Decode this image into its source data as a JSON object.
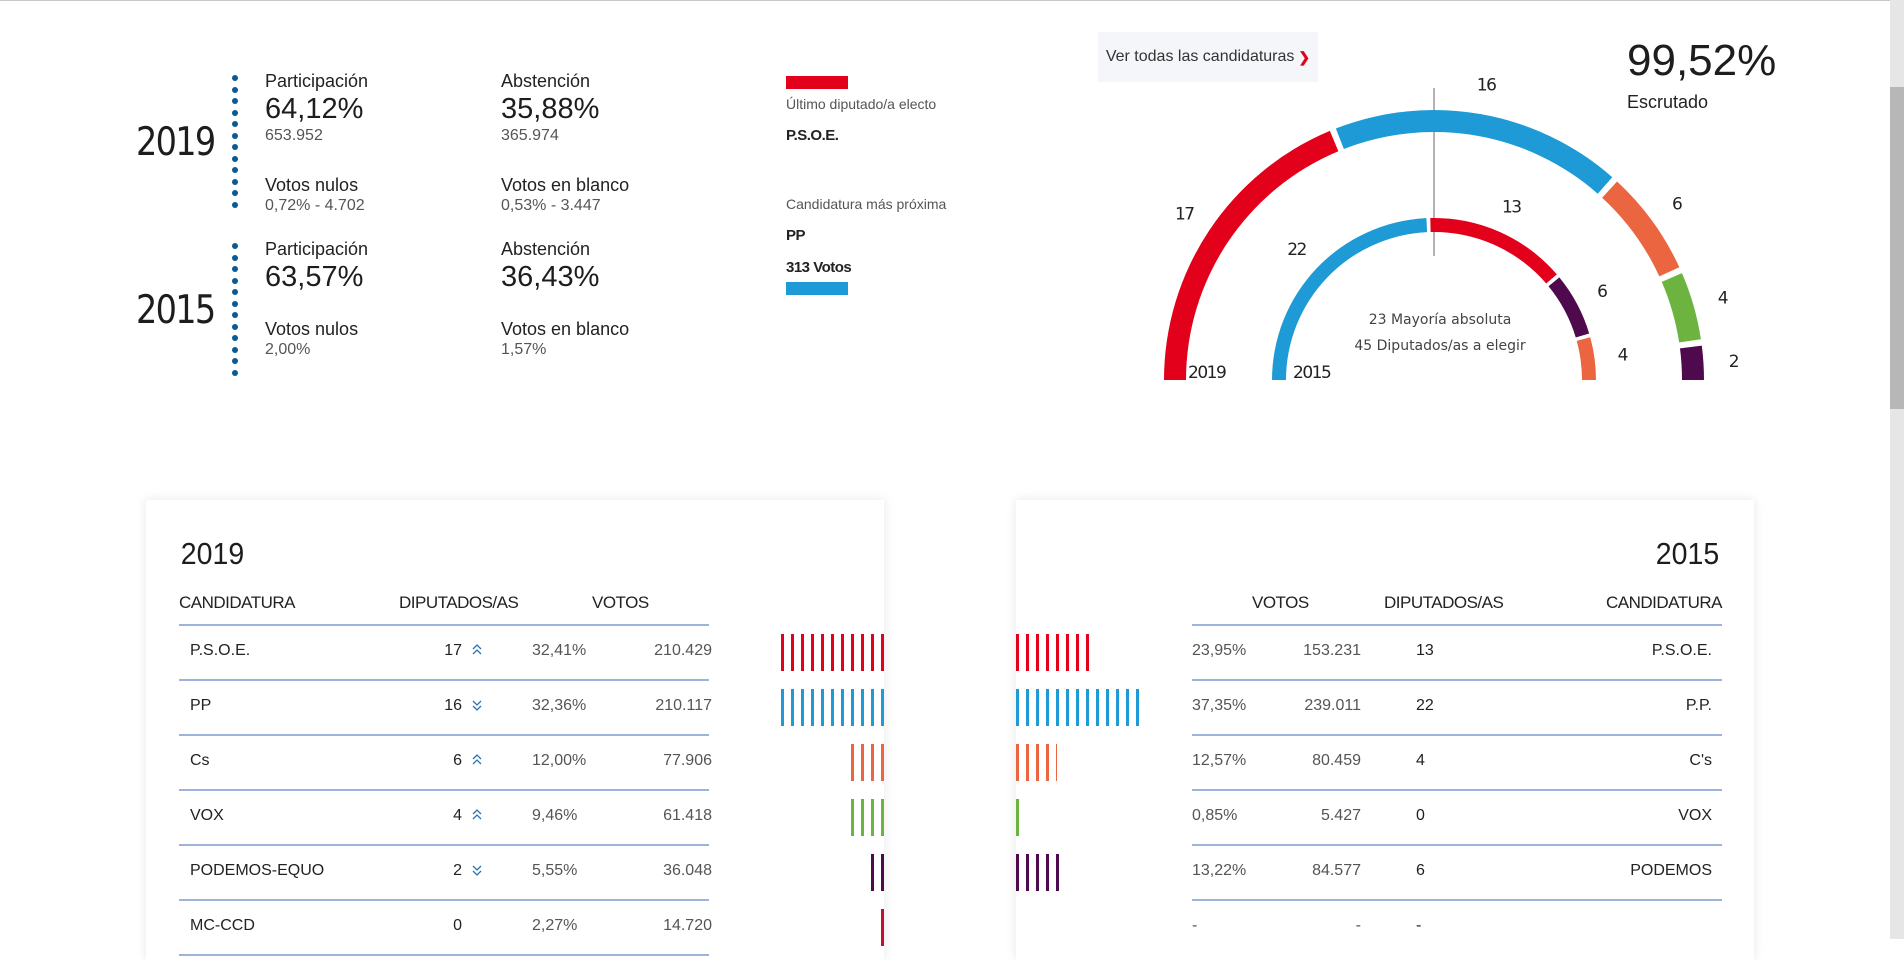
{
  "colors": {
    "psoe": "#e2001a",
    "pp": "#1e9ad6",
    "cs": "#ea6540",
    "vox": "#6cb43f",
    "podemos": "#4f0a4d",
    "mc_ccd": "#c8102e",
    "dots": "#0a5a95"
  },
  "stats": [
    {
      "year": "2019",
      "participacion_label": "Participación",
      "participacion_pct": "64,12%",
      "participacion_votes": "653.952",
      "abstencion_label": "Abstención",
      "abstencion_pct": "35,88%",
      "abstencion_votes": "365.974",
      "nulos_label": "Votos nulos",
      "nulos_value": "0,72% - 4.702",
      "blanco_label": "Votos en blanco",
      "blanco_value": "0,53% - 3.447"
    },
    {
      "year": "2015",
      "participacion_label": "Participación",
      "participacion_pct": "63,57%",
      "abstencion_label": "Abstención",
      "abstencion_pct": "36,43%",
      "nulos_label": "Votos nulos",
      "nulos_value": "2,00%",
      "blanco_label": "Votos en blanco",
      "blanco_value": "1,57%"
    }
  ],
  "last_seat": {
    "ultimo_label": "Último diputado/a electo",
    "ultimo_party": "P.S.O.E.",
    "proxima_label": "Candidatura más próxima",
    "proxima_party": "PP",
    "proxima_votes": "313 Votos"
  },
  "dropdown": {
    "label": "Ver todas las candidaturas"
  },
  "escrutado": {
    "pct": "99,52%",
    "label": "Escrutado"
  },
  "chart_data": {
    "type": "pie",
    "subtype": "parliament-semicircle",
    "total_seats": 45,
    "majority": 23,
    "center_line1": "23 Mayoría absoluta",
    "center_line2": "45 Diputados/as a elegir",
    "series": [
      {
        "name": "2019",
        "label": "2019",
        "segments": [
          {
            "party": "PSOE",
            "seats": 17,
            "color": "#e2001a"
          },
          {
            "party": "PP",
            "seats": 16,
            "color": "#1e9ad6"
          },
          {
            "party": "Cs",
            "seats": 6,
            "color": "#ea6540"
          },
          {
            "party": "VOX",
            "seats": 4,
            "color": "#6cb43f"
          },
          {
            "party": "PODEMOS-EQUO",
            "seats": 2,
            "color": "#4f0a4d"
          }
        ]
      },
      {
        "name": "2015",
        "label": "2015",
        "segments": [
          {
            "party": "PP",
            "seats": 22,
            "color": "#1e9ad6"
          },
          {
            "party": "PSOE",
            "seats": 13,
            "color": "#e2001a"
          },
          {
            "party": "PODEMOS",
            "seats": 6,
            "color": "#4f0a4d"
          },
          {
            "party": "C's",
            "seats": 4,
            "color": "#ea6540"
          }
        ]
      }
    ]
  },
  "table2019": {
    "year": "2019",
    "headers": {
      "candidatura": "CANDIDATURA",
      "diputados": "DIPUTADOS/AS",
      "votos": "VOTOS"
    },
    "rows": [
      {
        "party": "P.S.O.E.",
        "seats": "17",
        "trend": "up",
        "pct": "32,41%",
        "votes": "210.429",
        "color": "#e2001a",
        "bar_pct": 32.41
      },
      {
        "party": "PP",
        "seats": "16",
        "trend": "down",
        "pct": "32,36%",
        "votes": "210.117",
        "color": "#1e9ad6",
        "bar_pct": 32.36
      },
      {
        "party": "Cs",
        "seats": "6",
        "trend": "up",
        "pct": "12,00%",
        "votes": "77.906",
        "color": "#ea6540",
        "bar_pct": 12.0
      },
      {
        "party": "VOX",
        "seats": "4",
        "trend": "up",
        "pct": "9,46%",
        "votes": "61.418",
        "color": "#6cb43f",
        "bar_pct": 9.46
      },
      {
        "party": "PODEMOS-EQUO",
        "seats": "2",
        "trend": "down",
        "pct": "5,55%",
        "votes": "36.048",
        "color": "#4f0a4d",
        "bar_pct": 5.55
      },
      {
        "party": "MC-CCD",
        "seats": "0",
        "trend": "",
        "pct": "2,27%",
        "votes": "14.720",
        "color": "#c8102e",
        "bar_pct": 2.27
      }
    ]
  },
  "table2015": {
    "year": "2015",
    "headers": {
      "votos": "VOTOS",
      "diputados": "DIPUTADOS/AS",
      "candidatura": "CANDIDATURA"
    },
    "rows": [
      {
        "party": "P.S.O.E.",
        "seats": "13",
        "pct": "23,95%",
        "votes": "153.231",
        "color": "#e2001a",
        "bar_pct": 23.95
      },
      {
        "party": "P.P.",
        "seats": "22",
        "pct": "37,35%",
        "votes": "239.011",
        "color": "#1e9ad6",
        "bar_pct": 37.35
      },
      {
        "party": "C's",
        "seats": "4",
        "pct": "12,57%",
        "votes": "80.459",
        "color": "#ea6540",
        "bar_pct": 12.57
      },
      {
        "party": "VOX",
        "seats": "0",
        "pct": "0,85%",
        "votes": "5.427",
        "color": "#6cb43f",
        "bar_pct": 0.85
      },
      {
        "party": "PODEMOS",
        "seats": "6",
        "pct": "13,22%",
        "votes": "84.577",
        "color": "#4f0a4d",
        "bar_pct": 13.22
      },
      {
        "party": "",
        "seats": "-",
        "pct": "-",
        "votes": "-",
        "color": "#ffffff",
        "bar_pct": 0
      }
    ]
  }
}
